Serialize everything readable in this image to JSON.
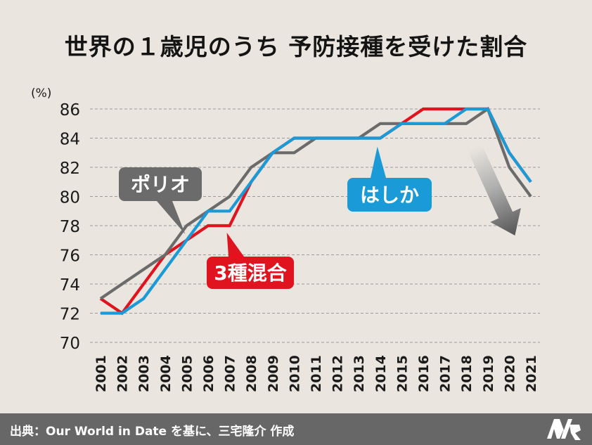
{
  "chart_data": {
    "type": "line",
    "title": "世界の１歳児のうち 予防接種を受けた割合",
    "ylabel": "(%)",
    "xlabel": "",
    "ylim": [
      70,
      86
    ],
    "yticks": [
      70,
      72,
      74,
      76,
      78,
      80,
      82,
      84,
      86
    ],
    "grid": true,
    "x": [
      "2001",
      "2002",
      "2003",
      "2004",
      "2005",
      "2006",
      "2007",
      "2008",
      "2009",
      "2010",
      "2011",
      "2012",
      "2013",
      "2014",
      "2015",
      "2016",
      "2017",
      "2018",
      "2019",
      "2020",
      "2021"
    ],
    "series": [
      {
        "name": "ポリオ",
        "color": "#6b6b6b",
        "values": [
          73,
          74,
          75,
          76,
          78,
          79,
          80,
          82,
          83,
          83,
          84,
          84,
          84,
          85,
          85,
          85,
          85,
          85,
          86,
          82,
          80
        ]
      },
      {
        "name": "3種混合",
        "color": "#e0141e",
        "values": [
          73,
          72,
          74,
          76,
          77,
          78,
          78,
          81,
          83,
          84,
          84,
          84,
          84,
          84,
          85,
          86,
          86,
          86,
          86,
          83,
          81
        ]
      },
      {
        "name": "はしか",
        "color": "#1a9ad6",
        "values": [
          72,
          72,
          73,
          75,
          77,
          79,
          79,
          81,
          83,
          84,
          84,
          84,
          84,
          84,
          85,
          85,
          85,
          86,
          86,
          83,
          81
        ]
      }
    ],
    "annotation": {
      "type": "downward-arrow",
      "from_year": "2018",
      "to_year": "2020"
    }
  },
  "footer": {
    "source": "出典：Our World in Date を基に、三宅隆介 作成",
    "logo": "MR-logo-icon"
  }
}
